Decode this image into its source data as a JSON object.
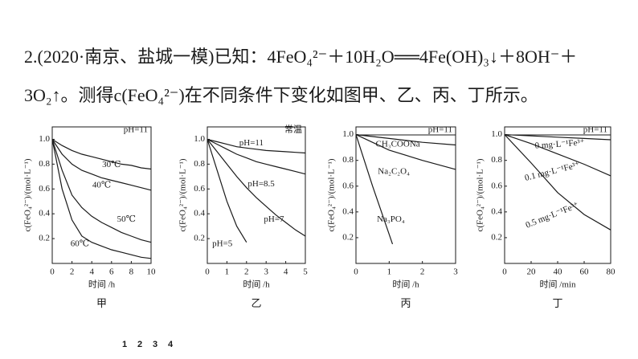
{
  "question": {
    "line1": "2.(2020·南京、盐城一模)已知：4FeO₄²⁻＋10H₂O══4Fe(OH)₃↓＋8OH⁻＋",
    "line2": "3O₂↑。测得c(FeO₄²⁻)在不同条件下变化如图甲、乙、丙、丁所示。"
  },
  "pages": [
    "1",
    "2",
    "3",
    "4"
  ],
  "chart_data": [
    {
      "type": "line",
      "caption": "甲",
      "xlabel": "时间 /h",
      "ylabel": "c(FeO₄²⁻)/(mol·L⁻¹)",
      "annotation": "pH=11",
      "xlim": [
        0,
        10
      ],
      "ylim": [
        0,
        1.1
      ],
      "xticks": [
        0,
        2,
        4,
        6,
        8,
        10
      ],
      "yticks": [
        0.2,
        0.4,
        0.6,
        0.8,
        {
          "value": 1,
          "label": "1.0"
        }
      ],
      "series": [
        {
          "name": "30℃",
          "color": "#1a1a1a",
          "x": [
            0,
            1,
            2,
            3,
            4,
            5,
            6,
            7,
            8,
            9,
            10
          ],
          "values": [
            1.0,
            0.95,
            0.91,
            0.88,
            0.86,
            0.84,
            0.82,
            0.8,
            0.79,
            0.77,
            0.76
          ]
        },
        {
          "name": "40℃",
          "color": "#1a1a1a",
          "x": [
            0,
            1,
            2,
            3,
            4,
            5,
            6,
            7,
            8,
            9,
            10
          ],
          "values": [
            1.0,
            0.88,
            0.8,
            0.75,
            0.72,
            0.69,
            0.67,
            0.65,
            0.63,
            0.61,
            0.59
          ]
        },
        {
          "name": "50℃",
          "color": "#1a1a1a",
          "x": [
            0,
            1,
            2,
            3,
            4,
            5,
            6,
            7,
            8,
            9,
            10
          ],
          "values": [
            1.0,
            0.75,
            0.55,
            0.45,
            0.38,
            0.33,
            0.29,
            0.25,
            0.22,
            0.19,
            0.17
          ]
        },
        {
          "name": "60℃",
          "color": "#1a1a1a",
          "x": [
            0,
            1,
            2,
            3,
            4,
            5,
            6,
            7,
            8,
            9,
            10
          ],
          "values": [
            1.0,
            0.6,
            0.35,
            0.22,
            0.17,
            0.14,
            0.11,
            0.09,
            0.07,
            0.05,
            0.04
          ]
        }
      ]
    },
    {
      "type": "line",
      "caption": "乙",
      "xlabel": "时间 /h",
      "ylabel": "c(FeO₄²⁻)/(mol·L⁻¹)",
      "annotation": "常温",
      "xlim": [
        0,
        5
      ],
      "ylim": [
        0,
        1.1
      ],
      "xticks": [
        0,
        1,
        2,
        3,
        4,
        5
      ],
      "yticks": [
        0.2,
        0.4,
        0.6,
        0.8,
        {
          "value": 1,
          "label": "1.0"
        }
      ],
      "series": [
        {
          "name": "pH=11",
          "color": "#1a1a1a",
          "x": [
            0,
            0.5,
            1,
            1.5,
            2,
            2.5,
            3,
            3.5,
            4,
            4.5,
            5
          ],
          "values": [
            1.0,
            0.98,
            0.96,
            0.94,
            0.93,
            0.92,
            0.91,
            0.905,
            0.9,
            0.895,
            0.89
          ]
        },
        {
          "name": "pH=8.5",
          "color": "#1a1a1a",
          "x": [
            0,
            0.5,
            1,
            1.5,
            2,
            2.5,
            3,
            3.5,
            4,
            4.5,
            5
          ],
          "values": [
            1.0,
            0.96,
            0.92,
            0.88,
            0.85,
            0.82,
            0.8,
            0.78,
            0.76,
            0.74,
            0.72
          ]
        },
        {
          "name": "pH=7",
          "color": "#1a1a1a",
          "x": [
            0,
            0.5,
            1,
            1.5,
            2,
            2.5,
            3,
            3.5,
            4,
            4.5,
            5
          ],
          "values": [
            1.0,
            0.9,
            0.8,
            0.7,
            0.61,
            0.53,
            0.46,
            0.39,
            0.33,
            0.27,
            0.22
          ]
        },
        {
          "name": "pH=5",
          "color": "#1a1a1a",
          "x": [
            0,
            0.5,
            1,
            1.5,
            2
          ],
          "values": [
            1.0,
            0.75,
            0.5,
            0.3,
            0.17
          ]
        }
      ]
    },
    {
      "type": "line",
      "caption": "丙",
      "xlabel": "时间 /h",
      "ylabel": "c(FeO₄²⁻)/(mol·L⁻¹)",
      "annotation": "pH=11",
      "xlim": [
        0,
        3
      ],
      "ylim": [
        0,
        1.06
      ],
      "xticks": [
        0,
        1,
        2,
        3
      ],
      "yticks": [
        0.2,
        0.4,
        0.6,
        0.8,
        {
          "value": 1,
          "label": "1.0"
        }
      ],
      "series": [
        {
          "name": "CH₃COONa",
          "color": "#1a1a1a",
          "x": [
            0,
            1,
            2,
            3
          ],
          "values": [
            1.0,
            0.97,
            0.94,
            0.92
          ]
        },
        {
          "name": "Na₂C₂O₄",
          "color": "#1a1a1a",
          "x": [
            0,
            1,
            2,
            3
          ],
          "values": [
            1.0,
            0.88,
            0.8,
            0.73
          ]
        },
        {
          "name": "Na₃PO₄",
          "color": "#1a1a1a",
          "x": [
            0,
            0.5,
            1.1
          ],
          "values": [
            1.0,
            0.6,
            0.15
          ]
        }
      ]
    },
    {
      "type": "line",
      "caption": "丁",
      "xlabel": "时间 /min",
      "ylabel": "c(FeO₄²⁻)/(mol·L⁻¹)",
      "annotation": "pH=11",
      "xlim": [
        0,
        80
      ],
      "ylim": [
        0,
        1.06
      ],
      "xticks": [
        0,
        20,
        40,
        60,
        80
      ],
      "yticks": [
        0.2,
        0.4,
        0.6,
        0.8,
        {
          "value": 1,
          "label": "1.0"
        }
      ],
      "series": [
        {
          "name": "0 mg·L⁻¹Fe³⁺",
          "color": "#1a1a1a",
          "x": [
            0,
            20,
            40,
            60,
            80
          ],
          "values": [
            1.0,
            0.99,
            0.98,
            0.97,
            0.96
          ]
        },
        {
          "name": "0.1 mg·L⁻¹Fe³⁺",
          "color": "#1a1a1a",
          "x": [
            0,
            20,
            40,
            60,
            80
          ],
          "values": [
            1.0,
            0.93,
            0.85,
            0.77,
            0.68
          ]
        },
        {
          "name": "0.5 mg·L⁻¹Fe³⁺",
          "color": "#1a1a1a",
          "x": [
            0,
            20,
            40,
            60,
            80
          ],
          "values": [
            1.0,
            0.78,
            0.55,
            0.38,
            0.26
          ]
        }
      ]
    }
  ]
}
